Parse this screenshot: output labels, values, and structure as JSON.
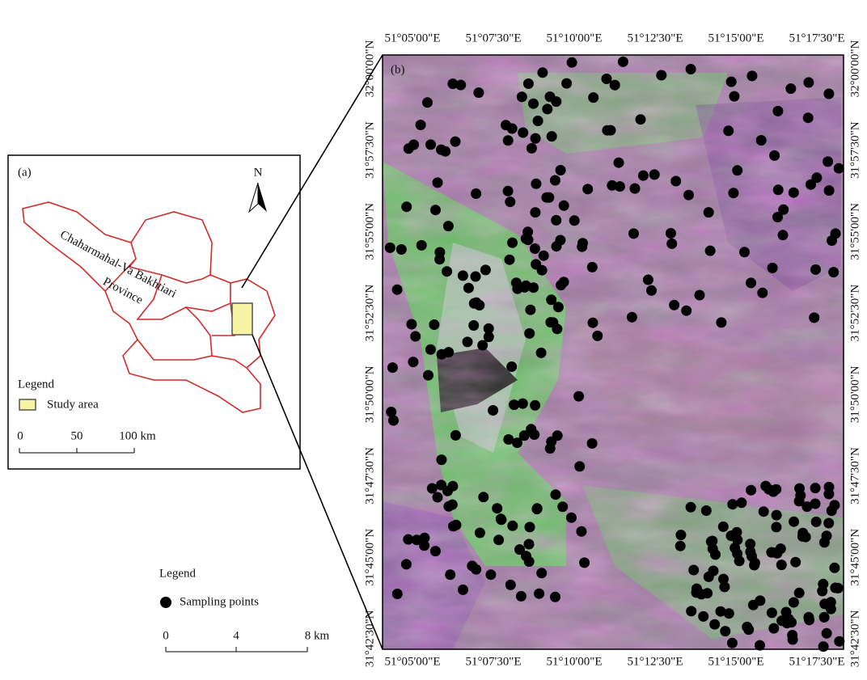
{
  "panel_a": {
    "label": "(a)",
    "north": "N",
    "province_name": [
      "Chaharmahal-Va Bakhtiari",
      "Province"
    ],
    "legend": {
      "title": "Legend",
      "items": [
        "Study area"
      ]
    },
    "scale": [
      "0",
      "50",
      "100 km"
    ]
  },
  "panel_b": {
    "label": "(b)",
    "longitudes": [
      "51°05'00\"E",
      "51°07'30\"E",
      "51°10'00\"E",
      "51°12'30\"E",
      "51°15'00\"E",
      "51°17'30\"E"
    ],
    "latitudes": [
      "32°00'00\"N",
      "31°57'30\"N",
      "31°55'00\"N",
      "31°52'30\"N",
      "31°50'00\"N",
      "31°47'30\"N",
      "31°45'00\"N",
      "31°42'30\"N"
    ],
    "legend": {
      "title": "Legend",
      "items": [
        "Sampling points"
      ]
    },
    "scale": [
      "0",
      "4",
      "8 km"
    ]
  }
}
